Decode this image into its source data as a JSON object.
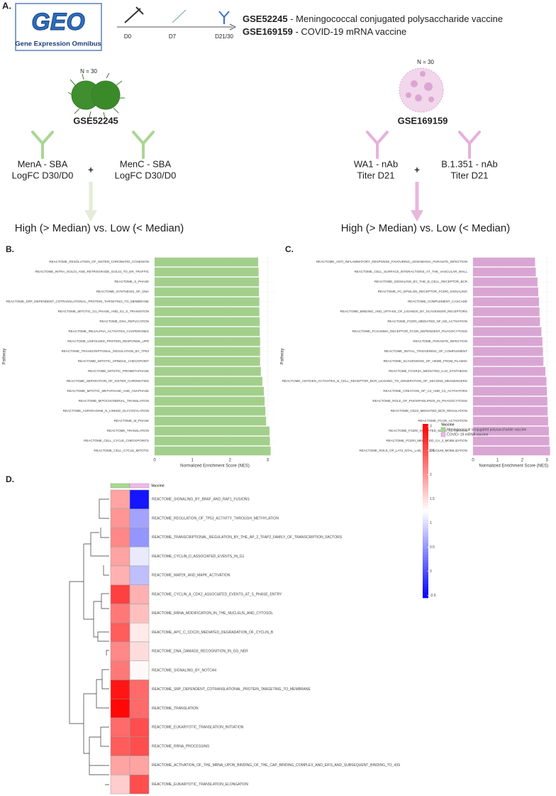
{
  "schematic": {
    "panel_label": "A.",
    "logo_text": "GEO",
    "logo_caption": "Gene Expression Omnibus",
    "timepoints": [
      "D0",
      "D7",
      "D21/30"
    ],
    "datasets": [
      {
        "id": "GSE52245",
        "desc": " - Meningococcal conjugated polysaccharide vaccine"
      },
      {
        "id": "GSE169159",
        "desc": " - COVID-19 mRNA vaccine"
      }
    ],
    "left": {
      "n": "N = 30",
      "id": "GSE52245",
      "a1": "MenA - SBA",
      "a2": "LogFC D30/D0",
      "plus": "+",
      "b1": "MenC - SBA",
      "b2": "LogFC D30/D0",
      "split": "High (> Median) vs. Low (< Median)"
    },
    "right": {
      "n": "N = 30",
      "id": "GSE169159",
      "a1": "WA1 - nAb",
      "a2": "Titer D21",
      "plus": "+",
      "b1": "B.1.351 - nAb",
      "b2": "Titer D21",
      "split": "High (> Median) vs. Low (< Median)"
    }
  },
  "chart_data": [
    {
      "type": "hbar",
      "panel_label": "B.",
      "xlabel": "Normalized Enrichment Score (NES)",
      "ylabel": "Pathway",
      "color": "#a3cf8c",
      "grid": true,
      "xlim": [
        0,
        3.2
      ],
      "xticks": [
        0,
        1,
        2,
        3
      ],
      "categories": [
        "REACTOME_RESOLUTION_OF_SISTER_CHROMATID_COHESION",
        "REACTOME_INTRA_GOLGI_AND_RETROGRADE_GOLGI_TO_ER_TRAFFIC",
        "REACTOME_S_PHASE",
        "REACTOME_SYNTHESIS_OF_DNA",
        "REACTOME_SRP_DEPENDENT_COTRANSLATIONAL_PROTEIN_TARGETING_TO_MEMBRANE",
        "REACTOME_MITOTIC_G1_PHASE_AND_G1_S_TRANSITION",
        "REACTOME_DNA_REPLICATION",
        "REACTOME_IRE1ALPHA_ACTIVATES_CHAPERONES",
        "REACTOME_UNFOLDED_PROTEIN_RESPONSE_UPR",
        "REACTOME_TRANSCRIPTIONAL_REGULATION_BY_TP53",
        "REACTOME_MITOTIC_SPINDLE_CHECKPOINT",
        "REACTOME_MITOTIC_PROMETAPHASE",
        "REACTOME_SEPARATION_OF_SISTER_CHROMATIDS",
        "REACTOME_MITOTIC_METAPHASE_AND_ANAPHASE",
        "REACTOME_MITOCHONDRIAL_TRANSLATION",
        "REACTOME_ASPARAGINE_N_LINKED_GLYCOSYLATION",
        "REACTOME_M_PHASE",
        "REACTOME_TRANSLATION",
        "REACTOME_CELL_CYCLE_CHECKPOINTS",
        "REACTOME_CELL_CYCLE_MITOTIC"
      ],
      "values": [
        2.75,
        2.76,
        2.77,
        2.77,
        2.78,
        2.78,
        2.79,
        2.79,
        2.8,
        2.8,
        2.8,
        2.82,
        2.86,
        2.9,
        2.92,
        2.94,
        2.96,
        3.05,
        3.06,
        3.08
      ]
    },
    {
      "type": "hbar",
      "panel_label": "C.",
      "xlabel": "Normalized Enrichment Score (NES)",
      "ylabel": "Pathway",
      "color": "#d9a6d4",
      "grid": true,
      "xlim": [
        0,
        3.3
      ],
      "xticks": [
        0,
        1,
        2,
        3
      ],
      "categories": [
        "REACTOME_ANTI_INFLAMMATORY_RESPONSE_FAVOURING_LEISHMANIA_PARASITE_INFECTION",
        "REACTOME_CELL_SURFACE_INTERACTIONS_AT_THE_VASCULAR_WALL",
        "REACTOME_SIGNALING_BY_THE_B_CELL_RECEPTOR_BCR",
        "REACTOME_FC_EPSILON_RECEPTOR_FCERI_SIGNALING",
        "REACTOME_COMPLEMENT_CASCADE",
        "REACTOME_BINDING_AND_UPTAKE_OF_LIGANDS_BY_SCAVENGER_RECEPTORS",
        "REACTOME_FCERI_MEDIATED_NF_KB_ACTIVATION",
        "REACTOME_FCGAMMA_RECEPTOR_FCGR_DEPENDENT_PHAGOCYTOSIS",
        "REACTOME_PARASITE_INFECTION",
        "REACTOME_INITIAL_TRIGGERING_OF_COMPLEMENT",
        "REACTOME_SCAVENGING_OF_HEME_FROM_PLASMA",
        "REACTOME_FCGR3A_MEDIATED_IL10_SYNTHESIS",
        "REACTOME_ANTIGEN_ACTIVATES_B_CELL_RECEPTOR_BCR_LEADING_TO_GENERATION_OF_SECOND_MESSENGERS",
        "REACTOME_CREATION_OF_C4_AND_C2_ACTIVATORS",
        "REACTOME_ROLE_OF_PHOSPHOLIPIDS_IN_PHAGOCYTOSIS",
        "REACTOME_CD22_MEDIATED_BCR_REGULATION",
        "REACTOME_FCGR_ACTIVATION",
        "REACTOME_FCERI_MEDIATED_MAPK_ACTIVATION",
        "REACTOME_FCERI_MEDIATED_CA_2_MOBILIZATION",
        "REACTOME_ROLE_OF_LAT2_NTAL_LAB_ON_CALCIUM_MOBILIZATION"
      ],
      "values": [
        2.52,
        2.55,
        2.62,
        2.65,
        2.68,
        2.7,
        2.72,
        2.78,
        2.82,
        2.84,
        2.86,
        2.94,
        2.98,
        3.0,
        3.02,
        3.03,
        3.05,
        3.08,
        3.1,
        3.13
      ]
    },
    {
      "type": "heatmap",
      "panel_label": "D.",
      "legend_title": "Vaccine",
      "zlim": [
        -0.55,
        3.05
      ],
      "colorbar_ticks": [
        3,
        2.5,
        2,
        1.5,
        1,
        0.5,
        0,
        -0.5
      ],
      "color_scale": {
        "low": "#0000ff",
        "mid": "#ffffff",
        "high": "#ff0000",
        "midpoint": 1.25
      },
      "rows": [
        "REACTOME_SIGNALING_BY_BRAF_AND_RAF1_FUSIONS",
        "REACTOME_REGULATION_OF_TP53_ACTIVITY_THROUGH_METHYLATION",
        "REACTOME_TRANSCRIPTIONAL_REGULATION_BY_THE_AP_2_TFAP2_FAMILY_OF_TRANSCRIPTION_FACTORS",
        "REACTOME_CYCLIN_D_ASSOCIATED_EVENTS_IN_G1",
        "REACTOME_MAP2K_AND_MAPK_ACTIVATION",
        "REACTOME_CYCLIN_A_CDK2_ASSOCIATED_EVENTS_AT_S_PHASE_ENTRY",
        "REACTOME_RRNA_MODIFICATION_IN_THE_NUCLEUS_AND_CYTOSOL",
        "REACTOME_APC_C_CDC20_MEDIATED_DEGRADATION_OF_CYCLIN_B",
        "REACTOME_DNA_DAMAGE_RECOGNITION_IN_GG_NER",
        "REACTOME_SIGNALING_BY_NOTCH4",
        "REACTOME_SRP_DEPENDENT_COTRANSLATIONAL_PROTEIN_TARGETING_TO_MEMBRANE",
        "REACTOME_TRANSLATION",
        "REACTOME_EUKARYOTIC_TRANSLATION_INITIATION",
        "REACTOME_RRNA_PROCESSING",
        "REACTOME_ACTIVATION_OF_THE_MRNA_UPON_BINDING_OF_THE_CAP_BINDING_COMPLEX_AND_EIFS_AND_SUBSEQUENT_BINDING_TO_43S",
        "REACTOME_EUKARYOTIC_TRANSLATION_ELONGATION"
      ],
      "series": [
        {
          "name": "Meningococcal conjugated polysaccharide vaccine",
          "color": "#a5dc8a",
          "values": [
            1.9,
            2.0,
            2.1,
            1.9,
            1.8,
            2.6,
            2.2,
            2.4,
            2.1,
            2.2,
            2.9,
            3.0,
            2.3,
            2.4,
            1.9,
            1.6
          ]
        },
        {
          "name": "COVID−19 mRNA vaccine",
          "color": "#f2b8ec",
          "values": [
            -0.4,
            0.6,
            0.5,
            1.1,
            0.8,
            1.8,
            1.7,
            1.4,
            1.5,
            1.3,
            2.3,
            2.3,
            2.5,
            2.5,
            1.9,
            2.5
          ]
        }
      ]
    }
  ]
}
